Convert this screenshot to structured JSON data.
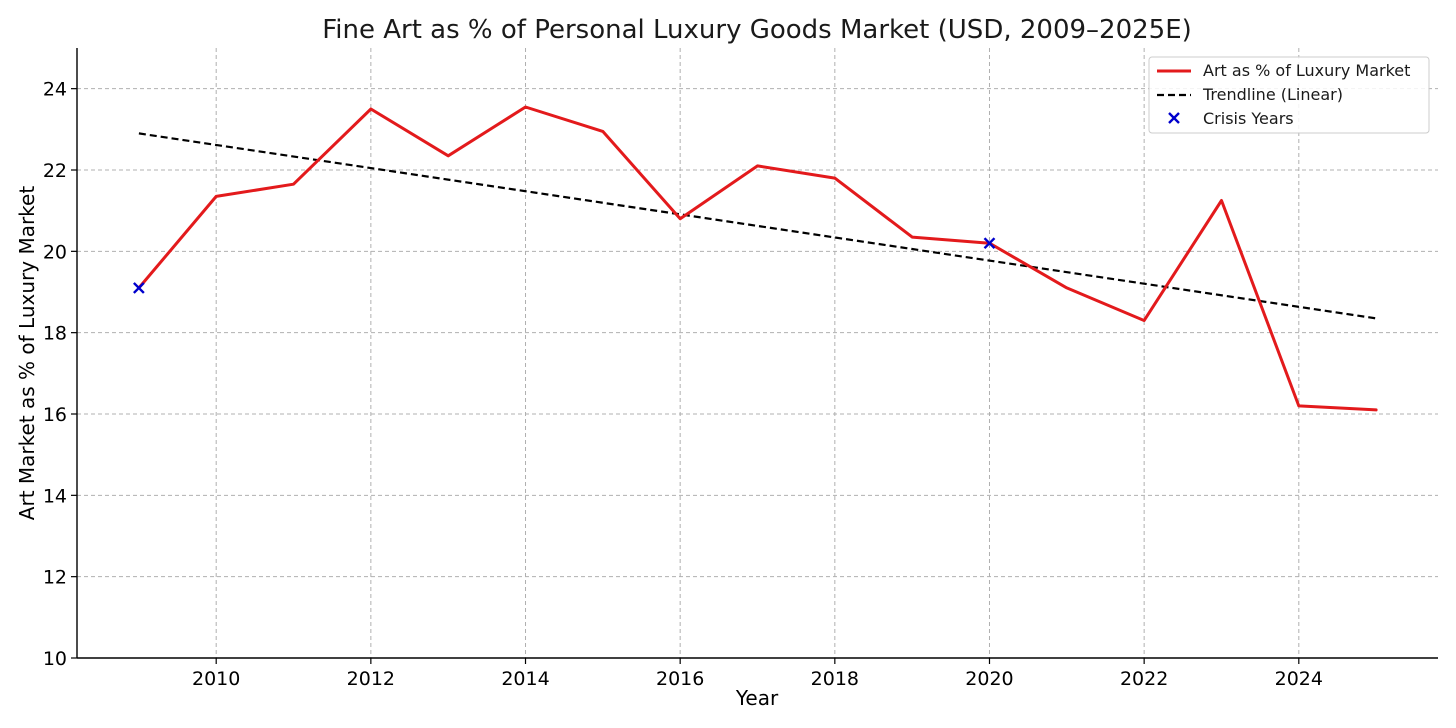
{
  "chart_data": {
    "type": "line",
    "title": "Fine Art as % of Personal Luxury Goods Market (USD, 2009–2025E)",
    "xlabel": "Year",
    "ylabel": "Art Market as % of Luxury Market",
    "xlim": [
      2008.2,
      2025.8
    ],
    "ylim": [
      10,
      25
    ],
    "xticks": [
      2010,
      2012,
      2014,
      2016,
      2018,
      2020,
      2022,
      2024
    ],
    "yticks": [
      10,
      12,
      14,
      16,
      18,
      20,
      22,
      24
    ],
    "grid": true,
    "legend_position": "top-right",
    "x": [
      2009,
      2010,
      2011,
      2012,
      2013,
      2014,
      2015,
      2016,
      2017,
      2018,
      2019,
      2020,
      2021,
      2022,
      2023,
      2024,
      2025
    ],
    "series": [
      {
        "name": "Art as % of Luxury Market",
        "style": "solid",
        "color": "#e31a1c",
        "values": [
          19.1,
          21.35,
          21.65,
          23.5,
          22.35,
          23.55,
          22.95,
          20.8,
          22.1,
          21.8,
          20.35,
          20.2,
          19.1,
          18.3,
          21.25,
          16.2,
          16.1
        ]
      },
      {
        "name": "Trendline (Linear)",
        "style": "dashed",
        "color": "#000000",
        "x": [
          2009,
          2025
        ],
        "values": [
          22.9,
          18.35
        ]
      },
      {
        "name": "Crisis Years",
        "style": "marker-x",
        "color": "#0000cc",
        "x": [
          2009,
          2020
        ],
        "values": [
          19.1,
          20.2
        ]
      }
    ]
  }
}
